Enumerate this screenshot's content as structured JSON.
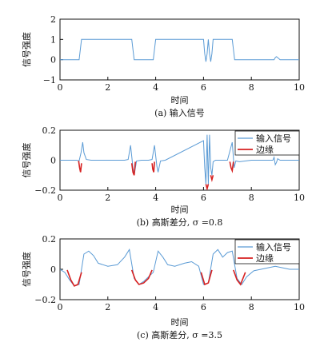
{
  "colors": {
    "signal": "#5b9bd5",
    "edge": "#d62020",
    "axis": "#111111"
  },
  "chart_data": [
    {
      "type": "line",
      "ylabel": "信号强度",
      "xlabel": "时间",
      "caption": "(a) 输入信号",
      "xlim": [
        0,
        10
      ],
      "ylim": [
        -1,
        2
      ],
      "xticks": [
        "0",
        "2",
        "4",
        "6",
        "8",
        "10"
      ],
      "yticks": [
        "2",
        "1",
        "0",
        "−1"
      ],
      "legend": null,
      "series": [
        {
          "x": [
            0,
            0.8,
            0.85,
            0.9,
            3.0,
            3.05,
            3.1,
            3.9,
            3.95,
            4.0,
            6.0,
            6.05,
            6.1,
            6.15,
            6.2,
            6.25,
            6.3,
            6.35,
            6.4,
            7.2,
            7.25,
            7.3,
            8.95,
            9.0,
            9.05,
            9.1,
            9.2,
            10
          ],
          "y": [
            0,
            0,
            0.5,
            1,
            1,
            0.5,
            0,
            0,
            0.5,
            1,
            1,
            0.3,
            -0.1,
            0.3,
            1,
            0.3,
            -0.1,
            0.3,
            1,
            1,
            0.5,
            0,
            0,
            0.1,
            0.15,
            0.1,
            0,
            0
          ]
        }
      ]
    },
    {
      "type": "line",
      "ylabel": "信号强度",
      "xlabel": "时间",
      "caption": "(b) 高斯差分, σ =0.8",
      "xlim": [
        0,
        10
      ],
      "ylim": [
        -0.2,
        0.2
      ],
      "xticks": [
        "0",
        "2",
        "4",
        "6",
        "8",
        "10"
      ],
      "yticks": [
        "0.2",
        "0",
        "−0.2"
      ],
      "legend": [
        "输入信号",
        "边缘"
      ],
      "series": [
        {
          "name": "输入信号",
          "x": [
            0,
            0.7,
            0.8,
            0.88,
            0.95,
            1.0,
            1.1,
            1.3,
            2.7,
            2.85,
            2.95,
            3.05,
            3.1,
            3.2,
            3.4,
            3.7,
            3.85,
            3.95,
            4.05,
            4.1,
            4.2,
            4.4,
            6.0,
            6.05,
            6.1,
            6.15,
            6.2,
            6.25,
            6.3,
            6.35,
            6.4,
            6.5,
            6.7,
            7.0,
            7.1,
            7.2,
            7.28,
            7.35,
            7.5,
            8.0,
            8.9,
            8.95,
            9.0,
            9.05,
            9.1,
            9.2,
            10
          ],
          "y": [
            0,
            0,
            -0.005,
            0.05,
            0.12,
            0.05,
            0.005,
            0,
            0,
            0.005,
            0.1,
            -0.05,
            -0.1,
            -0.005,
            0,
            0,
            0.005,
            0.1,
            -0.04,
            -0.08,
            -0.005,
            0,
            0.13,
            -0.05,
            -0.16,
            0.17,
            -0.16,
            0.17,
            -0.05,
            -0.1,
            -0.01,
            0,
            0,
            0,
            0.06,
            0.12,
            -0.05,
            -0.005,
            -0.01,
            0,
            0,
            0.02,
            -0.03,
            -0.015,
            0.01,
            0,
            0
          ]
        },
        {
          "name": "边缘",
          "segments": [
            {
              "x": [
                0.78,
                0.82,
                0.86,
                0.9
              ],
              "y": [
                -0.005,
                -0.05,
                -0.08,
                -0.02
              ]
            },
            {
              "x": [
                3.0,
                3.05,
                3.1,
                3.15
              ],
              "y": [
                -0.02,
                -0.08,
                -0.1,
                -0.01
              ]
            },
            {
              "x": [
                3.85,
                3.88,
                3.92,
                3.95
              ],
              "y": [
                -0.02,
                -0.06,
                -0.08,
                -0.01
              ]
            },
            {
              "x": [
                6.1,
                6.15,
                6.2
              ],
              "y": [
                -0.16,
                -0.19,
                -0.16
              ]
            },
            {
              "x": [
                6.3,
                6.35,
                6.4
              ],
              "y": [
                -0.1,
                -0.13,
                -0.1
              ]
            },
            {
              "x": [
                7.1,
                7.15,
                7.2,
                7.25
              ],
              "y": [
                -0.01,
                -0.05,
                -0.07,
                -0.01
              ]
            }
          ]
        }
      ]
    },
    {
      "type": "line",
      "ylabel": "信号强度",
      "xlabel": "时间",
      "caption": "(c) 高斯差分, σ =3.5",
      "xlim": [
        0,
        10
      ],
      "ylim": [
        -0.2,
        0.2
      ],
      "xticks": [
        "0",
        "2",
        "4",
        "6",
        "8",
        "10"
      ],
      "yticks": [
        "0.2",
        "0",
        "−0.2"
      ],
      "legend": [
        "输入信号",
        "边缘"
      ],
      "series": [
        {
          "name": "输入信号",
          "x": [
            0,
            0.2,
            0.4,
            0.6,
            0.8,
            1.0,
            1.2,
            1.4,
            1.6,
            2.0,
            2.4,
            2.7,
            2.9,
            3.1,
            3.3,
            3.5,
            3.7,
            3.9,
            4.1,
            4.3,
            4.5,
            4.8,
            5.2,
            5.5,
            5.8,
            6.0,
            6.2,
            6.4,
            6.6,
            6.8,
            7.0,
            7.2,
            7.4,
            7.6,
            7.8,
            8.1,
            8.4,
            8.7,
            9.0,
            9.3,
            9.6,
            10
          ],
          "y": [
            0,
            -0.02,
            -0.07,
            -0.11,
            -0.1,
            0.1,
            0.12,
            0.09,
            0.04,
            0.02,
            0.03,
            0.08,
            0.13,
            -0.06,
            -0.1,
            -0.08,
            -0.05,
            -0.02,
            0.12,
            0.08,
            0.03,
            0.02,
            0.04,
            0.05,
            0.02,
            -0.1,
            -0.09,
            0.1,
            0.13,
            0.08,
            0.11,
            0.12,
            -0.06,
            -0.1,
            -0.05,
            -0.01,
            0,
            0.01,
            0.02,
            0.01,
            0,
            0
          ]
        },
        {
          "name": "边缘",
          "segments": [
            {
              "x": [
                0.3,
                0.45,
                0.6,
                0.75,
                0.9
              ],
              "y": [
                -0.005,
                -0.07,
                -0.11,
                -0.1,
                -0.02
              ]
            },
            {
              "x": [
                3.0,
                3.15,
                3.3,
                3.5,
                3.7,
                3.85
              ],
              "y": [
                -0.005,
                -0.07,
                -0.1,
                -0.09,
                -0.06,
                -0.005
              ]
            },
            {
              "x": [
                5.9,
                6.05,
                6.2,
                6.35
              ],
              "y": [
                -0.02,
                -0.1,
                -0.09,
                -0.005
              ]
            },
            {
              "x": [
                7.25,
                7.4,
                7.55,
                7.75
              ],
              "y": [
                -0.005,
                -0.07,
                -0.1,
                -0.02
              ]
            }
          ]
        }
      ]
    }
  ]
}
